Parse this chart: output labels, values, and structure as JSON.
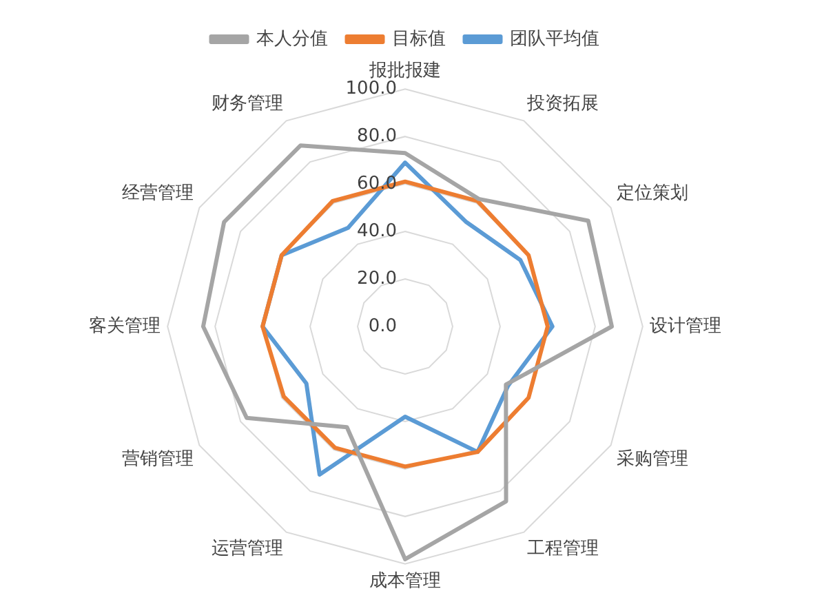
{
  "chart_data": {
    "type": "radar",
    "categories": [
      "报批报建",
      "投资拓展",
      "定位策划",
      "设计管理",
      "采购管理",
      "工程管理",
      "成本管理",
      "运营管理",
      "营销管理",
      "客关管理",
      "经营管理",
      "财务管理"
    ],
    "series": [
      {
        "name": "本人分值",
        "color": "#a5a5a5",
        "values": [
          73,
          62,
          89,
          87,
          49,
          85,
          98,
          49,
          77,
          85,
          88,
          88
        ]
      },
      {
        "name": "目标值",
        "color": "#ed7d31",
        "values": [
          61,
          61,
          60,
          60,
          60,
          61,
          59,
          59,
          59,
          60,
          60,
          61
        ]
      },
      {
        "name": "团队平均值",
        "color": "#5b9bd5",
        "values": [
          69,
          51,
          56,
          62,
          50,
          61,
          38,
          72,
          48,
          60,
          60,
          48
        ]
      }
    ],
    "ylim": [
      0,
      100
    ],
    "yticks": [
      {
        "value": 0,
        "label": "0.0"
      },
      {
        "value": 20,
        "label": "20.0"
      },
      {
        "value": 40,
        "label": "40.0"
      },
      {
        "value": 60,
        "label": "60.0"
      },
      {
        "value": 80,
        "label": "80.0"
      },
      {
        "value": 100,
        "label": "100.0"
      }
    ],
    "grid": true,
    "legend": "top",
    "marker": "none"
  }
}
